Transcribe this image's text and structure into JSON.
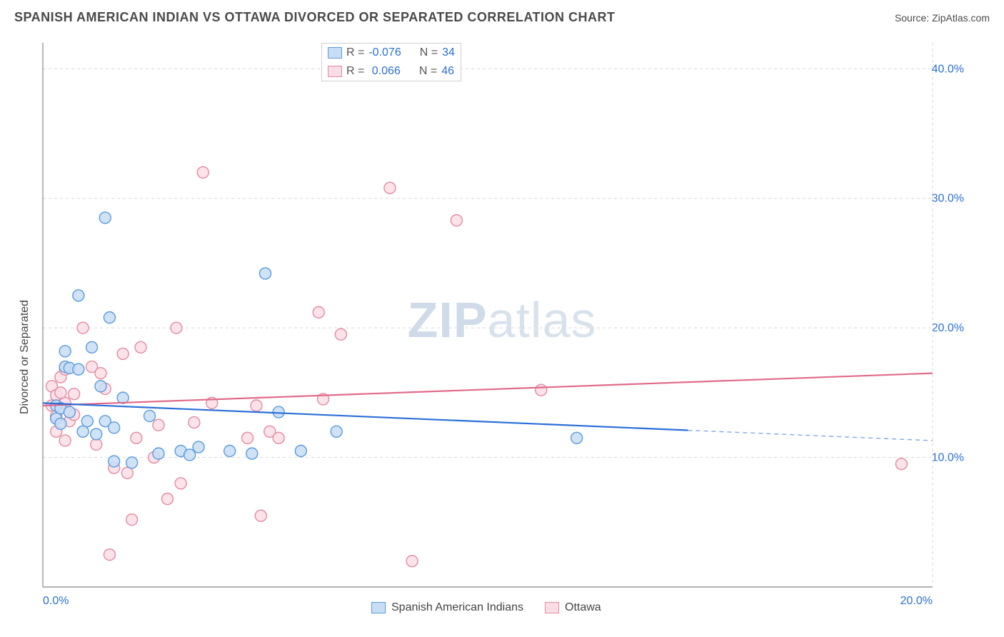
{
  "header": {
    "title": "SPANISH AMERICAN INDIAN VS OTTAWA DIVORCED OR SEPARATED CORRELATION CHART",
    "source": "Source: ZipAtlas.com"
  },
  "watermark": {
    "prefix": "ZIP",
    "suffix": "atlas"
  },
  "chart": {
    "type": "scatter",
    "background_color": "#ffffff",
    "grid_color": "#d8d8d8",
    "axis_color": "#888888",
    "tick_label_color": "#2b6fd6",
    "ylabel": "Divorced or Separated",
    "ylabel_fontsize": 16,
    "xlim": [
      0,
      20
    ],
    "ylim": [
      0,
      42
    ],
    "y_ticks": [
      10,
      20,
      30,
      40
    ],
    "y_tick_labels": [
      "10.0%",
      "20.0%",
      "30.0%",
      "40.0%"
    ],
    "x_ticks": [
      0,
      20
    ],
    "x_tick_labels": [
      "0.0%",
      "20.0%"
    ],
    "series": [
      {
        "key": "series_a",
        "label": "Spanish American Indians",
        "marker_fill": "#c7ddf5",
        "marker_stroke": "#5a9bdc",
        "marker_radius": 8,
        "line_color": "#2b6fd6",
        "line_width": 2.2,
        "r_value": "-0.076",
        "n_value": "34",
        "trend": {
          "x1": 0,
          "y1": 14.2,
          "x2": 20,
          "y2": 11.3,
          "solid_until_x": 14.5
        },
        "points": [
          [
            0.3,
            14.0
          ],
          [
            0.3,
            13.0
          ],
          [
            0.4,
            12.6
          ],
          [
            0.4,
            13.8
          ],
          [
            0.5,
            18.2
          ],
          [
            0.5,
            17.0
          ],
          [
            0.6,
            13.5
          ],
          [
            0.6,
            16.9
          ],
          [
            0.8,
            16.8
          ],
          [
            0.8,
            22.5
          ],
          [
            0.9,
            12.0
          ],
          [
            1.0,
            12.8
          ],
          [
            1.1,
            18.5
          ],
          [
            1.2,
            11.8
          ],
          [
            1.3,
            15.5
          ],
          [
            1.4,
            28.5
          ],
          [
            1.4,
            12.8
          ],
          [
            1.5,
            20.8
          ],
          [
            1.6,
            12.3
          ],
          [
            1.6,
            9.7
          ],
          [
            1.8,
            14.6
          ],
          [
            2.0,
            9.6
          ],
          [
            2.4,
            13.2
          ],
          [
            2.6,
            10.3
          ],
          [
            3.1,
            10.5
          ],
          [
            3.3,
            10.2
          ],
          [
            3.5,
            10.8
          ],
          [
            4.2,
            10.5
          ],
          [
            4.7,
            10.3
          ],
          [
            5.0,
            24.2
          ],
          [
            5.3,
            13.5
          ],
          [
            5.8,
            10.5
          ],
          [
            6.6,
            12.0
          ],
          [
            12.0,
            11.5
          ]
        ]
      },
      {
        "key": "series_b",
        "label": "Ottawa",
        "marker_fill": "#fbdde5",
        "marker_stroke": "#e38aa2",
        "marker_radius": 8,
        "line_color": "#e06a8a",
        "line_width": 2.2,
        "r_value": "0.066",
        "n_value": "46",
        "trend": {
          "x1": 0,
          "y1": 14.0,
          "x2": 20,
          "y2": 16.5,
          "solid_until_x": 20
        },
        "points": [
          [
            0.2,
            14.0
          ],
          [
            0.2,
            15.5
          ],
          [
            0.3,
            13.2
          ],
          [
            0.3,
            14.8
          ],
          [
            0.3,
            12.0
          ],
          [
            0.4,
            16.2
          ],
          [
            0.4,
            15.0
          ],
          [
            0.5,
            11.3
          ],
          [
            0.5,
            14.2
          ],
          [
            0.5,
            16.8
          ],
          [
            0.6,
            12.8
          ],
          [
            0.7,
            14.9
          ],
          [
            0.7,
            13.3
          ],
          [
            0.9,
            20.0
          ],
          [
            1.1,
            17.0
          ],
          [
            1.2,
            11.0
          ],
          [
            1.3,
            16.5
          ],
          [
            1.4,
            15.3
          ],
          [
            1.5,
            2.5
          ],
          [
            1.6,
            9.2
          ],
          [
            1.8,
            18.0
          ],
          [
            1.9,
            8.8
          ],
          [
            2.0,
            5.2
          ],
          [
            2.1,
            11.5
          ],
          [
            2.2,
            18.5
          ],
          [
            2.5,
            10.0
          ],
          [
            2.6,
            12.5
          ],
          [
            2.8,
            6.8
          ],
          [
            3.0,
            20.0
          ],
          [
            3.1,
            8.0
          ],
          [
            3.4,
            12.7
          ],
          [
            3.6,
            32.0
          ],
          [
            3.8,
            14.2
          ],
          [
            4.6,
            11.5
          ],
          [
            4.8,
            14.0
          ],
          [
            4.9,
            5.5
          ],
          [
            5.1,
            12.0
          ],
          [
            5.3,
            11.5
          ],
          [
            6.2,
            21.2
          ],
          [
            6.3,
            14.5
          ],
          [
            6.7,
            19.5
          ],
          [
            7.8,
            30.8
          ],
          [
            8.3,
            2.0
          ],
          [
            9.3,
            28.3
          ],
          [
            11.2,
            15.2
          ],
          [
            19.3,
            9.5
          ]
        ]
      }
    ]
  }
}
